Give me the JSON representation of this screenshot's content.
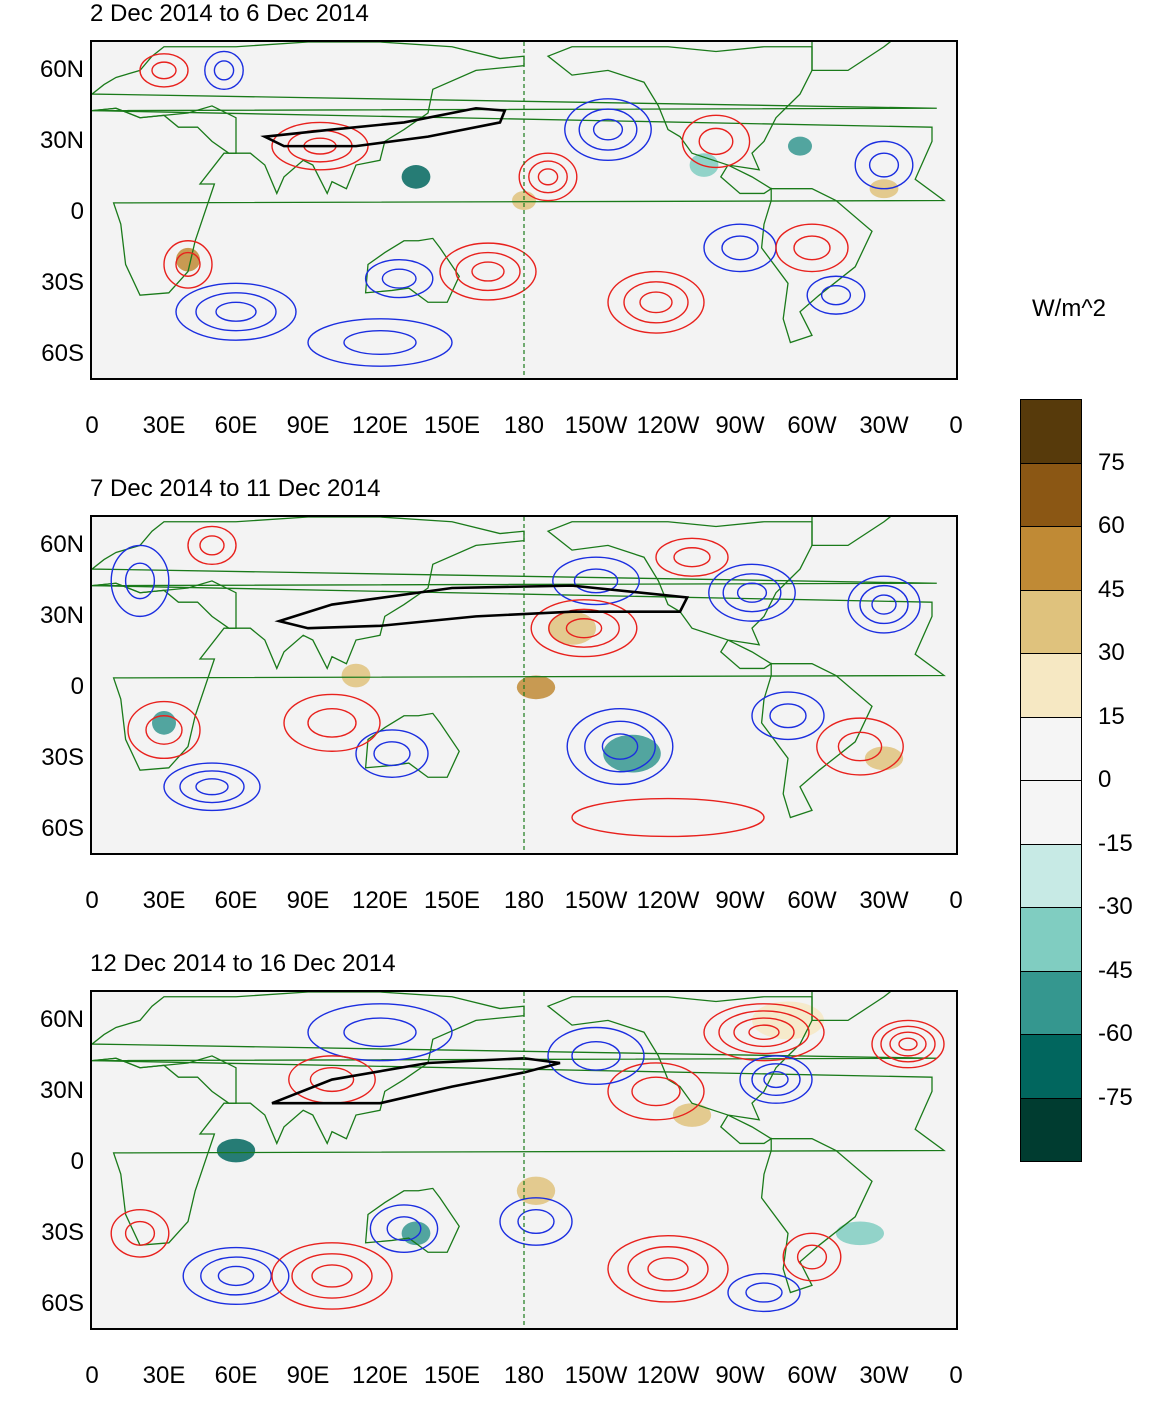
{
  "units": "W/m^2",
  "panels": [
    {
      "title": "2 Dec 2014 to 6 Dec 2014"
    },
    {
      "title": "7 Dec 2014 to 11 Dec 2014"
    },
    {
      "title": "12 Dec 2014 to 16 Dec 2014"
    }
  ],
  "lat_labels": [
    "60N",
    "30N",
    "0",
    "30S",
    "60S"
  ],
  "lat_values": [
    60,
    30,
    0,
    -30,
    -60
  ],
  "lon_labels": [
    "0",
    "30E",
    "60E",
    "90E",
    "120E",
    "150E",
    "180",
    "150W",
    "120W",
    "90W",
    "60W",
    "30W",
    "0"
  ],
  "lon_values": [
    0,
    30,
    60,
    90,
    120,
    150,
    180,
    210,
    240,
    270,
    300,
    330,
    360
  ],
  "lat_range": [
    -70,
    72
  ],
  "colorbar": {
    "labels": [
      "75",
      "60",
      "45",
      "30",
      "15",
      "0",
      "-15",
      "-30",
      "-45",
      "-60",
      "-75"
    ],
    "colors": [
      "#573a0b",
      "#8b5714",
      "#c08a35",
      "#dfc27d",
      "#f6e8c3",
      "#f5f5f5",
      "#f5f5f5",
      "#c7eae5",
      "#80cdc1",
      "#35978f",
      "#01665e",
      "#003c30"
    ]
  },
  "colors": {
    "positive_contour": "#e8211d",
    "negative_contour": "#1b2ee0",
    "jet_contour": "#000000",
    "coastline": "#1a7a1a",
    "dateline": "#1a7a1a"
  }
}
